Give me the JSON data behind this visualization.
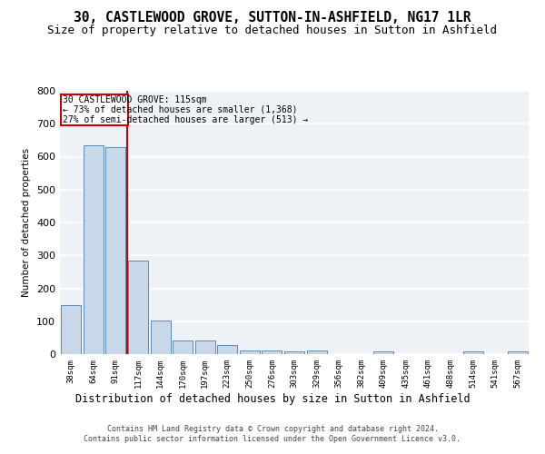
{
  "title": "30, CASTLEWOOD GROVE, SUTTON-IN-ASHFIELD, NG17 1LR",
  "subtitle": "Size of property relative to detached houses in Sutton in Ashfield",
  "xlabel": "Distribution of detached houses by size in Sutton in Ashfield",
  "ylabel": "Number of detached properties",
  "footer_line1": "Contains HM Land Registry data © Crown copyright and database right 2024.",
  "footer_line2": "Contains public sector information licensed under the Open Government Licence v3.0.",
  "annotation_line1": "30 CASTLEWOOD GROVE: 115sqm",
  "annotation_line2": "← 73% of detached houses are smaller (1,368)",
  "annotation_line3": "27% of semi-detached houses are larger (513) →",
  "bar_labels": [
    "38sqm",
    "64sqm",
    "91sqm",
    "117sqm",
    "144sqm",
    "170sqm",
    "197sqm",
    "223sqm",
    "250sqm",
    "276sqm",
    "303sqm",
    "329sqm",
    "356sqm",
    "382sqm",
    "409sqm",
    "435sqm",
    "461sqm",
    "488sqm",
    "514sqm",
    "541sqm",
    "567sqm"
  ],
  "bar_values": [
    150,
    635,
    630,
    285,
    102,
    42,
    42,
    27,
    12,
    12,
    7,
    10,
    0,
    0,
    7,
    0,
    0,
    0,
    7,
    0,
    7
  ],
  "bar_color": "#c8d8e8",
  "bar_edge_color": "#5b8db8",
  "vline_x_index": 2.5,
  "vline_color": "#cc0000",
  "annotation_box_color": "#cc0000",
  "ylim": [
    0,
    800
  ],
  "yticks": [
    0,
    100,
    200,
    300,
    400,
    500,
    600,
    700,
    800
  ],
  "bg_color": "#eef2f7",
  "title_fontsize": 10.5,
  "subtitle_fontsize": 9
}
